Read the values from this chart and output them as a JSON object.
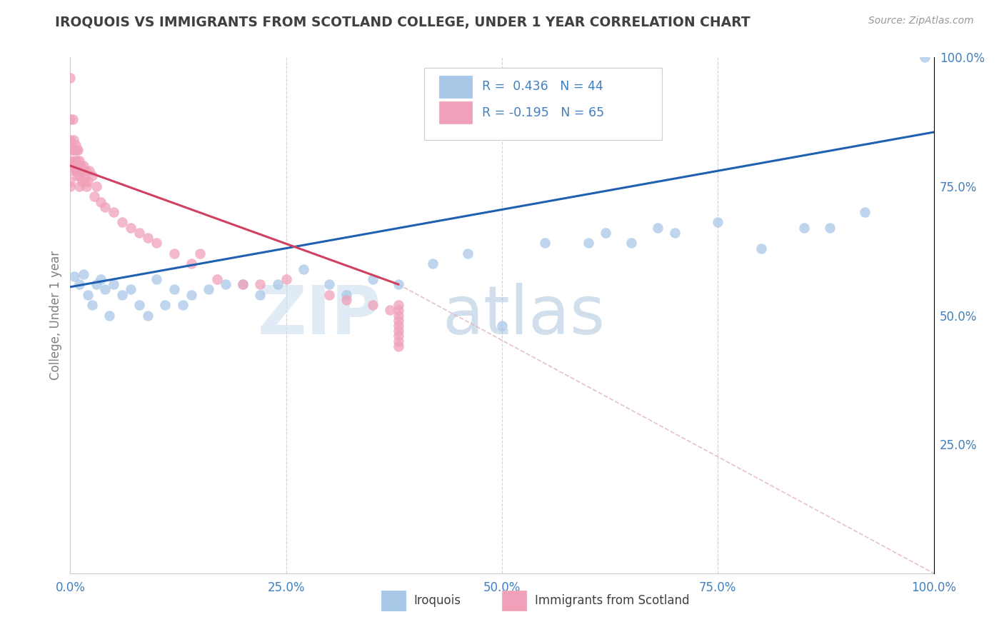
{
  "title": "IROQUOIS VS IMMIGRANTS FROM SCOTLAND COLLEGE, UNDER 1 YEAR CORRELATION CHART",
  "source_text": "Source: ZipAtlas.com",
  "ylabel": "College, Under 1 year",
  "xlim": [
    0.0,
    1.0
  ],
  "ylim": [
    0.0,
    1.0
  ],
  "xtick_labels": [
    "0.0%",
    "25.0%",
    "50.0%",
    "75.0%",
    "100.0%"
  ],
  "xtick_vals": [
    0.0,
    0.25,
    0.5,
    0.75,
    1.0
  ],
  "right_ytick_labels": [
    "100.0%",
    "75.0%",
    "50.0%",
    "25.0%"
  ],
  "right_ytick_vals": [
    1.0,
    0.75,
    0.5,
    0.25
  ],
  "watermark_zip": "ZIP",
  "watermark_atlas": "atlas",
  "legend_R1": "R =  0.436",
  "legend_N1": "N = 44",
  "legend_R2": "R = -0.195",
  "legend_N2": "N = 65",
  "blue_color": "#a8c8e8",
  "pink_color": "#f0a0b8",
  "blue_line_color": "#2060b0",
  "pink_line_color": "#d04060",
  "diag_color": "#e0b0c0",
  "title_color": "#404040",
  "source_color": "#999999",
  "axis_label_color": "#808080",
  "tick_color": "#4080c0",
  "legend_text_color": "#4080c0",
  "blue_pts_x": [
    0.005,
    0.01,
    0.015,
    0.02,
    0.025,
    0.03,
    0.035,
    0.04,
    0.045,
    0.05,
    0.06,
    0.07,
    0.08,
    0.09,
    0.1,
    0.11,
    0.12,
    0.13,
    0.14,
    0.16,
    0.18,
    0.2,
    0.22,
    0.24,
    0.27,
    0.3,
    0.32,
    0.35,
    0.38,
    0.42,
    0.46,
    0.5,
    0.55,
    0.6,
    0.62,
    0.65,
    0.68,
    0.7,
    0.75,
    0.8,
    0.85,
    0.88,
    0.92,
    0.99
  ],
  "blue_pts_y": [
    0.575,
    0.56,
    0.58,
    0.54,
    0.52,
    0.56,
    0.57,
    0.55,
    0.5,
    0.56,
    0.54,
    0.55,
    0.52,
    0.5,
    0.57,
    0.52,
    0.55,
    0.52,
    0.54,
    0.55,
    0.56,
    0.56,
    0.54,
    0.56,
    0.59,
    0.56,
    0.54,
    0.57,
    0.56,
    0.6,
    0.62,
    0.48,
    0.64,
    0.64,
    0.66,
    0.64,
    0.67,
    0.66,
    0.68,
    0.63,
    0.67,
    0.67,
    0.7,
    1.0
  ],
  "pink_pts_x": [
    0.0,
    0.0,
    0.0,
    0.0,
    0.0,
    0.0,
    0.0,
    0.002,
    0.002,
    0.003,
    0.004,
    0.005,
    0.005,
    0.006,
    0.006,
    0.007,
    0.007,
    0.008,
    0.008,
    0.009,
    0.009,
    0.01,
    0.01,
    0.01,
    0.012,
    0.013,
    0.014,
    0.015,
    0.016,
    0.017,
    0.018,
    0.019,
    0.02,
    0.022,
    0.025,
    0.028,
    0.03,
    0.035,
    0.04,
    0.05,
    0.06,
    0.07,
    0.08,
    0.09,
    0.1,
    0.12,
    0.14,
    0.15,
    0.17,
    0.2,
    0.22,
    0.25,
    0.3,
    0.32,
    0.35,
    0.37,
    0.38,
    0.38,
    0.38,
    0.38,
    0.38,
    0.38,
    0.38,
    0.38,
    0.38
  ],
  "pink_pts_y": [
    0.96,
    0.88,
    0.84,
    0.8,
    0.78,
    0.76,
    0.75,
    0.82,
    0.79,
    0.88,
    0.84,
    0.82,
    0.8,
    0.83,
    0.78,
    0.82,
    0.79,
    0.8,
    0.77,
    0.82,
    0.78,
    0.8,
    0.77,
    0.75,
    0.79,
    0.78,
    0.76,
    0.79,
    0.77,
    0.76,
    0.78,
    0.75,
    0.76,
    0.78,
    0.77,
    0.73,
    0.75,
    0.72,
    0.71,
    0.7,
    0.68,
    0.67,
    0.66,
    0.65,
    0.64,
    0.62,
    0.6,
    0.62,
    0.57,
    0.56,
    0.56,
    0.57,
    0.54,
    0.53,
    0.52,
    0.51,
    0.52,
    0.51,
    0.5,
    0.49,
    0.48,
    0.47,
    0.46,
    0.45,
    0.44
  ]
}
